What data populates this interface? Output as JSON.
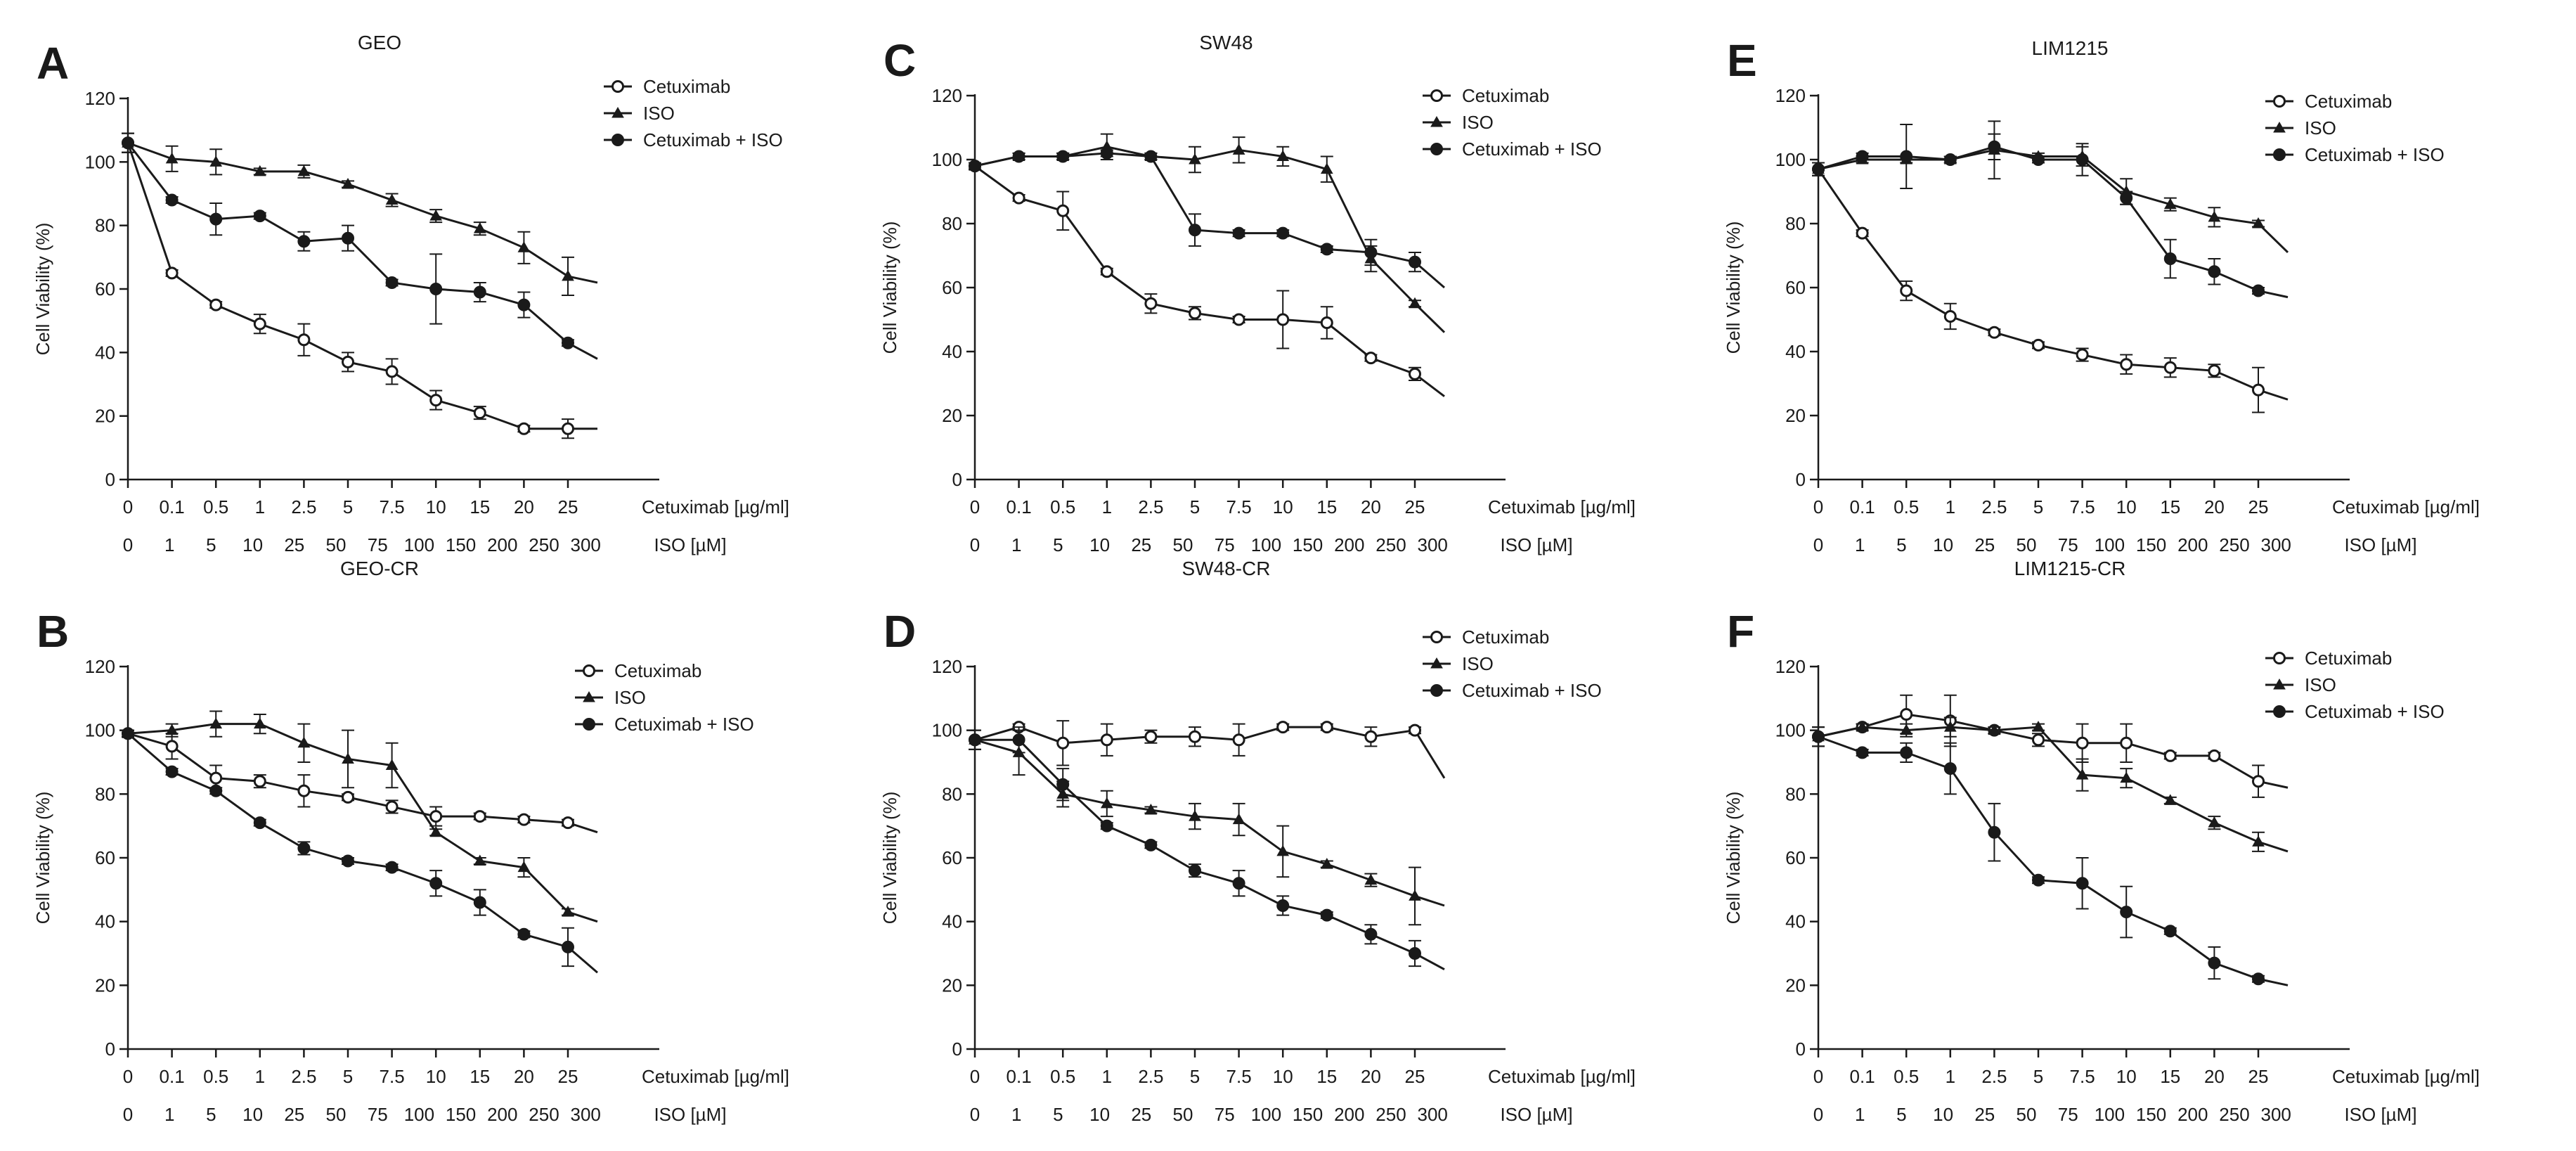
{
  "chart_data": [
    {
      "panel": "A",
      "title": "GEO",
      "type": "line",
      "ylabel": "Cell Viability (%)",
      "ylim": [
        0,
        120
      ],
      "yticks": [
        0,
        20,
        40,
        60,
        80,
        100,
        120
      ],
      "xaxis1_label": "Cetuximab [µg/ml]",
      "xaxis2_label": "ISO [µM]",
      "categories": [
        "0",
        "0.1",
        "0.5",
        "1",
        "2.5",
        "5",
        "7.5",
        "10",
        "15",
        "20",
        "25"
      ],
      "categories2": [
        "0",
        "1",
        "5",
        "10",
        "25",
        "50",
        "75",
        "100",
        "150",
        "200",
        "250",
        "300"
      ],
      "legend": {
        "placement": "top-right"
      },
      "series": [
        {
          "name": "Cetuximab",
          "marker": "open-circle",
          "values": [
            106,
            65,
            55,
            49,
            44,
            37,
            34,
            25,
            21,
            16,
            16
          ],
          "errors": [
            3,
            1,
            1,
            3,
            5,
            3,
            4,
            3,
            2,
            1,
            3
          ],
          "tail": 16
        },
        {
          "name": "ISO",
          "marker": "triangle",
          "values": [
            106,
            101,
            100,
            97,
            97,
            93,
            88,
            83,
            79,
            73,
            64
          ],
          "errors": [
            3,
            4,
            4,
            1,
            2,
            1,
            2,
            2,
            2,
            5,
            6
          ],
          "tail": 62
        },
        {
          "name": "Cetuximab + ISO",
          "marker": "filled-circle",
          "values": [
            106,
            88,
            82,
            83,
            75,
            76,
            62,
            60,
            59,
            55,
            43
          ],
          "errors": [
            3,
            1,
            5,
            1,
            3,
            4,
            1,
            11,
            3,
            4,
            1
          ],
          "tail": 38
        }
      ]
    },
    {
      "panel": "B",
      "title": "GEO-CR",
      "type": "line",
      "ylabel": "Cell Viability (%)",
      "ylim": [
        0,
        120
      ],
      "yticks": [
        0,
        20,
        40,
        60,
        80,
        100,
        120
      ],
      "xaxis1_label": "Cetuximab [µg/ml]",
      "xaxis2_label": "ISO [µM]",
      "categories": [
        "0",
        "0.1",
        "0.5",
        "1",
        "2.5",
        "5",
        "7.5",
        "10",
        "15",
        "20",
        "25"
      ],
      "categories2": [
        "0",
        "1",
        "5",
        "10",
        "25",
        "50",
        "75",
        "100",
        "150",
        "200",
        "250",
        "300"
      ],
      "legend": {
        "placement": "top-right"
      },
      "series": [
        {
          "name": "Cetuximab",
          "marker": "open-circle",
          "values": [
            99,
            95,
            85,
            84,
            81,
            79,
            76,
            73,
            73,
            72,
            71
          ],
          "errors": [
            1,
            4,
            4,
            2,
            5,
            1,
            2,
            3,
            1,
            1,
            1
          ],
          "tail": 68
        },
        {
          "name": "ISO",
          "marker": "triangle",
          "values": [
            99,
            100,
            102,
            102,
            96,
            91,
            89,
            68,
            59,
            57,
            43
          ],
          "errors": [
            1,
            2,
            4,
            3,
            6,
            9,
            7,
            1,
            1,
            3,
            1
          ],
          "tail": 40
        },
        {
          "name": "Cetuximab + ISO",
          "marker": "filled-circle",
          "values": [
            99,
            87,
            81,
            71,
            63,
            59,
            57,
            52,
            46,
            36,
            32
          ],
          "errors": [
            1,
            1,
            1,
            1,
            2,
            1,
            1,
            4,
            4,
            1,
            6
          ],
          "tail": 24
        }
      ]
    },
    {
      "panel": "C",
      "title": "SW48",
      "type": "line",
      "ylabel": "Cell Viability (%)",
      "ylim": [
        0,
        120
      ],
      "yticks": [
        0,
        20,
        40,
        60,
        80,
        100,
        120
      ],
      "xaxis1_label": "Cetuximab [µg/ml]",
      "xaxis2_label": "ISO [µM]",
      "categories": [
        "0",
        "0.1",
        "0.5",
        "1",
        "2.5",
        "5",
        "7.5",
        "10",
        "15",
        "20",
        "25"
      ],
      "categories2": [
        "0",
        "1",
        "5",
        "10",
        "25",
        "50",
        "75",
        "100",
        "150",
        "200",
        "250",
        "300"
      ],
      "legend": {
        "placement": "top-right"
      },
      "series": [
        {
          "name": "Cetuximab",
          "marker": "open-circle",
          "values": [
            98,
            88,
            84,
            65,
            55,
            52,
            50,
            50,
            49,
            38,
            33
          ],
          "errors": [
            1,
            1,
            6,
            1,
            3,
            2,
            1,
            9,
            5,
            1,
            2
          ],
          "tail": 26
        },
        {
          "name": "ISO",
          "marker": "triangle",
          "values": [
            98,
            101,
            101,
            104,
            101,
            100,
            103,
            101,
            97,
            69,
            55
          ],
          "errors": [
            1,
            1,
            1,
            4,
            1,
            4,
            4,
            3,
            4,
            4,
            1
          ],
          "tail": 46
        },
        {
          "name": "Cetuximab + ISO",
          "marker": "filled-circle",
          "values": [
            98,
            101,
            101,
            102,
            101,
            78,
            77,
            77,
            72,
            71,
            68
          ],
          "errors": [
            1,
            1,
            1,
            1,
            1,
            5,
            1,
            1,
            1,
            4,
            3
          ],
          "tail": 60
        }
      ]
    },
    {
      "panel": "D",
      "title": "SW48-CR",
      "type": "line",
      "ylabel": "Cell Viability (%)",
      "ylim": [
        0,
        120
      ],
      "yticks": [
        0,
        20,
        40,
        60,
        80,
        100,
        120
      ],
      "xaxis1_label": "Cetuximab [µg/ml]",
      "xaxis2_label": "ISO [µM]",
      "categories": [
        "0",
        "0.1",
        "0.5",
        "1",
        "2.5",
        "5",
        "7.5",
        "10",
        "15",
        "20",
        "25"
      ],
      "categories2": [
        "0",
        "1",
        "5",
        "10",
        "25",
        "50",
        "75",
        "100",
        "150",
        "200",
        "250",
        "300"
      ],
      "legend": {
        "placement": "top-right"
      },
      "series": [
        {
          "name": "Cetuximab",
          "marker": "open-circle",
          "values": [
            97,
            101,
            96,
            97,
            98,
            98,
            97,
            101,
            101,
            98,
            100
          ],
          "errors": [
            3,
            1,
            7,
            5,
            2,
            3,
            5,
            1,
            1,
            3,
            1
          ],
          "tail": 85
        },
        {
          "name": "ISO",
          "marker": "triangle",
          "values": [
            97,
            93,
            80,
            77,
            75,
            73,
            72,
            62,
            58,
            53,
            48
          ],
          "errors": [
            3,
            7,
            4,
            4,
            1,
            4,
            5,
            8,
            1,
            2,
            9
          ],
          "tail": 45
        },
        {
          "name": "Cetuximab + ISO",
          "marker": "filled-circle",
          "values": [
            97,
            97,
            83,
            70,
            64,
            56,
            52,
            45,
            42,
            36,
            30
          ],
          "errors": [
            3,
            4,
            5,
            1,
            1,
            2,
            4,
            3,
            1,
            3,
            4
          ],
          "tail": 25
        }
      ]
    },
    {
      "panel": "E",
      "title": "LIM1215",
      "type": "line",
      "ylabel": "Cell Viability (%)",
      "ylim": [
        0,
        120
      ],
      "yticks": [
        0,
        20,
        40,
        60,
        80,
        100,
        120
      ],
      "xaxis1_label": "Cetuximab [µg/ml]",
      "xaxis2_label": "ISO [µM]",
      "categories": [
        "0",
        "0.1",
        "0.5",
        "1",
        "2.5",
        "5",
        "7.5",
        "10",
        "15",
        "20",
        "25"
      ],
      "categories2": [
        "0",
        "1",
        "5",
        "10",
        "25",
        "50",
        "75",
        "100",
        "150",
        "200",
        "250",
        "300"
      ],
      "legend": {
        "placement": "top-right"
      },
      "series": [
        {
          "name": "Cetuximab",
          "marker": "open-circle",
          "values": [
            97,
            77,
            59,
            51,
            46,
            42,
            39,
            36,
            35,
            34,
            28
          ],
          "errors": [
            2,
            1,
            3,
            4,
            1,
            1,
            2,
            3,
            3,
            2,
            7
          ],
          "tail": 25
        },
        {
          "name": "ISO",
          "marker": "triangle",
          "values": [
            97,
            100,
            100,
            100,
            103,
            101,
            101,
            90,
            86,
            82,
            80
          ],
          "errors": [
            2,
            1,
            1,
            1,
            9,
            1,
            3,
            4,
            2,
            3,
            1
          ],
          "tail": 71
        },
        {
          "name": "Cetuximab + ISO",
          "marker": "filled-circle",
          "values": [
            97,
            101,
            101,
            100,
            104,
            100,
            100,
            88,
            69,
            65,
            59
          ],
          "errors": [
            2,
            1,
            10,
            1,
            4,
            1,
            5,
            2,
            6,
            4,
            1
          ],
          "tail": 57
        }
      ]
    },
    {
      "panel": "F",
      "title": "LIM1215-CR",
      "type": "line",
      "ylabel": "Cell Viability (%)",
      "ylim": [
        0,
        120
      ],
      "yticks": [
        0,
        20,
        40,
        60,
        80,
        100,
        120
      ],
      "xaxis1_label": "Cetuximab [µg/ml]",
      "xaxis2_label": "ISO [µM]",
      "categories": [
        "0",
        "0.1",
        "0.5",
        "1",
        "2.5",
        "5",
        "7.5",
        "10",
        "15",
        "20",
        "25"
      ],
      "categories2": [
        "0",
        "1",
        "5",
        "10",
        "25",
        "50",
        "75",
        "100",
        "150",
        "200",
        "250",
        "300"
      ],
      "legend": {
        "placement": "top-right"
      },
      "series": [
        {
          "name": "Cetuximab",
          "marker": "open-circle",
          "values": [
            98,
            101,
            105,
            103,
            100,
            97,
            96,
            96,
            92,
            92,
            84
          ],
          "errors": [
            3,
            1,
            6,
            8,
            1,
            2,
            6,
            6,
            1,
            1,
            5
          ],
          "tail": 82
        },
        {
          "name": "ISO",
          "marker": "triangle",
          "values": [
            98,
            101,
            100,
            101,
            100,
            101,
            86,
            85,
            78,
            71,
            65
          ],
          "errors": [
            3,
            1,
            2,
            3,
            1,
            1,
            5,
            3,
            1,
            2,
            3
          ],
          "tail": 62
        },
        {
          "name": "Cetuximab + ISO",
          "marker": "filled-circle",
          "values": [
            98,
            93,
            93,
            88,
            68,
            53,
            52,
            43,
            37,
            27,
            22
          ],
          "errors": [
            3,
            1,
            3,
            8,
            9,
            1,
            8,
            8,
            1,
            5,
            1
          ],
          "tail": 20
        }
      ]
    }
  ]
}
